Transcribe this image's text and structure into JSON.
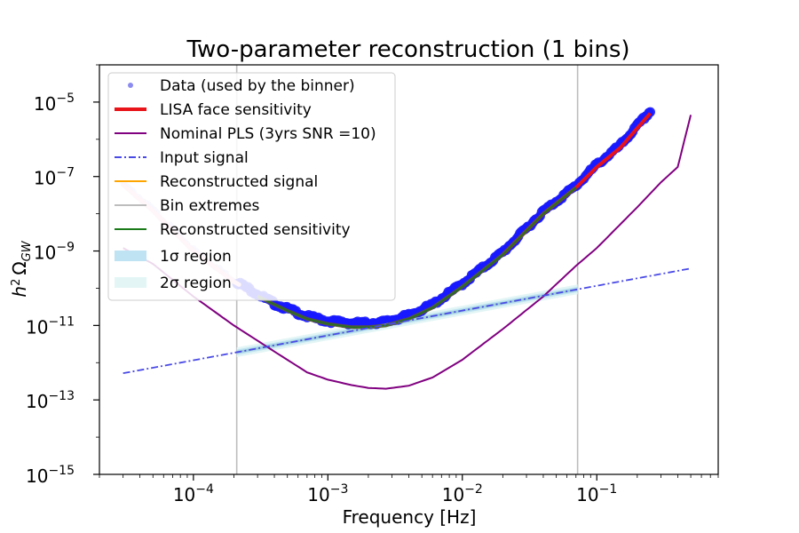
{
  "chart_data": {
    "type": "line",
    "title": "Two-parameter reconstruction (1 bins)",
    "xlabel": "Frequency [Hz]",
    "ylabel": "h 2 ΩGW",
    "ylabel_parts": {
      "h": "h",
      "exp": "2",
      "omega": "Ω",
      "sub": "GW"
    },
    "xscale": "log",
    "yscale": "log",
    "xlim": [
      2e-05,
      0.8
    ],
    "ylim": [
      1e-15,
      0.0001
    ],
    "x_ticks": [
      {
        "value": 0.0001,
        "base": "10",
        "exp": "−4"
      },
      {
        "value": 0.001,
        "base": "10",
        "exp": "−3"
      },
      {
        "value": 0.01,
        "base": "10",
        "exp": "−2"
      },
      {
        "value": 0.1,
        "base": "10",
        "exp": "−1"
      }
    ],
    "y_ticks": [
      {
        "value": 1e-15,
        "base": "10",
        "exp": "−15"
      },
      {
        "value": 1e-13,
        "base": "10",
        "exp": "−13"
      },
      {
        "value": 1e-11,
        "base": "10",
        "exp": "−11"
      },
      {
        "value": 1e-09,
        "base": "10",
        "exp": "−9"
      },
      {
        "value": 1e-07,
        "base": "10",
        "exp": "−7"
      },
      {
        "value": 1e-05,
        "base": "10",
        "exp": "−5"
      }
    ],
    "bin_extremes": [
      0.00021,
      0.072
    ],
    "legend_position": "upper-left",
    "legend": [
      {
        "label": "Data (used by the binner)",
        "kind": "dot",
        "color": "#8c8cf0"
      },
      {
        "label": "LISA face sensitivity",
        "kind": "line",
        "color": "#e8141a"
      },
      {
        "label": "Nominal PLS (3yrs SNR =10)",
        "kind": "line",
        "color": "#800080"
      },
      {
        "label": "Input signal",
        "kind": "dashdot",
        "color": "#4a4ae6"
      },
      {
        "label": "Reconstructed signal",
        "kind": "line",
        "color": "#ffa500"
      },
      {
        "label": "Bin extremes",
        "kind": "line",
        "color": "#bdbdbd"
      },
      {
        "label": "Reconstructed sensitivity",
        "kind": "line",
        "color": "#1a7a1a"
      },
      {
        "label": "1σ region",
        "kind": "patch",
        "color": "#bfe3f2"
      },
      {
        "label": "2σ region",
        "kind": "patch",
        "color": "#e3f5f5"
      }
    ],
    "series": [
      {
        "name": "Input signal",
        "x": [
          3e-05,
          0.5
        ],
        "y": [
          5.2e-13,
          3.4e-10
        ]
      },
      {
        "name": "Nominal PLS (3yrs SNR =10)",
        "x": [
          3e-05,
          5e-05,
          0.0001,
          0.0002,
          0.0004,
          0.0007,
          0.001,
          0.0015,
          0.002,
          0.0027,
          0.004,
          0.006,
          0.01,
          0.02,
          0.04,
          0.07,
          0.1,
          0.2,
          0.3,
          0.4,
          0.5
        ],
        "y": [
          1.2e-09,
          4.5e-10,
          6e-11,
          1e-11,
          2e-12,
          5.5e-13,
          3.5e-13,
          2.5e-13,
          2.1e-13,
          2e-13,
          2.4e-13,
          4e-13,
          1.2e-12,
          8e-12,
          6e-11,
          4e-10,
          1.2e-09,
          1.5e-08,
          7e-08,
          1.8e-07,
          4.5e-06
        ]
      },
      {
        "name": "LISA face sensitivity",
        "x": [
          3e-05,
          5e-05,
          0.0001,
          0.0002,
          0.0004,
          0.0007,
          0.001,
          0.0015,
          0.002,
          0.0027,
          0.004,
          0.006,
          0.01,
          0.02,
          0.04,
          0.07,
          0.1,
          0.15,
          0.2,
          0.25
        ],
        "y": [
          6e-08,
          1.2e-08,
          1e-09,
          1.5e-10,
          3.5e-11,
          1.5e-11,
          1.1e-11,
          9e-12,
          9e-12,
          1e-11,
          1.5e-11,
          3e-11,
          1.1e-10,
          8e-10,
          1e-08,
          5e-08,
          1.8e-07,
          6e-07,
          2e-06,
          5e-06
        ]
      },
      {
        "name": "Reconstructed sensitivity",
        "x": [
          0.0003,
          0.0005,
          0.0007,
          0.001,
          0.0015,
          0.002,
          0.0027,
          0.004,
          0.006,
          0.01,
          0.02,
          0.04,
          0.07
        ],
        "y": [
          6e-11,
          2.5e-11,
          1.5e-11,
          1.1e-11,
          9e-12,
          9e-12,
          1e-11,
          1.5e-11,
          3e-11,
          1.1e-10,
          8e-10,
          1e-08,
          5e-08
        ]
      },
      {
        "name": "Data (used by the binner)",
        "x": [
          3e-05,
          5e-05,
          0.0001,
          0.0002,
          0.0004,
          0.0007,
          0.001,
          0.0015,
          0.002,
          0.0027,
          0.004,
          0.006,
          0.01,
          0.02,
          0.04,
          0.07,
          0.1,
          0.15,
          0.2,
          0.25
        ],
        "y": [
          6e-08,
          1.2e-08,
          1e-09,
          1.5e-10,
          3.5e-11,
          1.6e-11,
          1.2e-11,
          1.05e-11,
          1.05e-11,
          1.15e-11,
          1.7e-11,
          3.3e-11,
          1.2e-10,
          8.5e-10,
          1.05e-08,
          5.2e-08,
          1.9e-07,
          6.3e-07,
          2.1e-06,
          5.2e-06
        ]
      }
    ]
  }
}
